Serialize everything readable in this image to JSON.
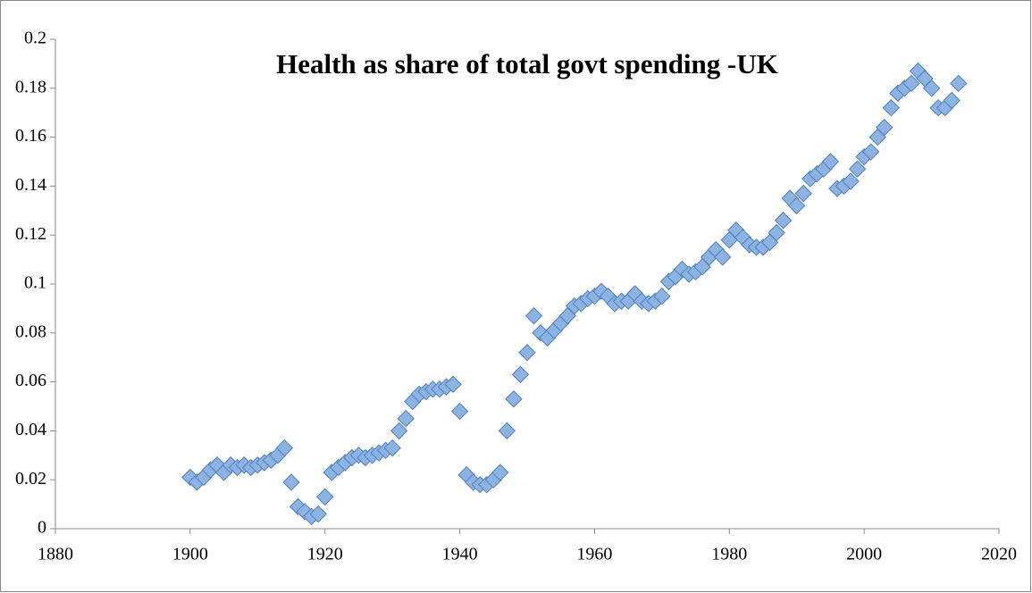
{
  "chart_data": {
    "type": "scatter",
    "title": "Health as share of total govt spending -UK",
    "x": [
      1900,
      1901,
      1902,
      1903,
      1904,
      1905,
      1906,
      1907,
      1908,
      1909,
      1910,
      1911,
      1912,
      1913,
      1914,
      1915,
      1916,
      1917,
      1918,
      1919,
      1920,
      1921,
      1922,
      1923,
      1924,
      1925,
      1926,
      1927,
      1928,
      1929,
      1930,
      1931,
      1932,
      1933,
      1934,
      1935,
      1936,
      1937,
      1938,
      1939,
      1940,
      1941,
      1942,
      1943,
      1944,
      1945,
      1946,
      1947,
      1948,
      1949,
      1950,
      1951,
      1952,
      1953,
      1954,
      1955,
      1956,
      1957,
      1958,
      1959,
      1960,
      1961,
      1962,
      1963,
      1964,
      1965,
      1966,
      1967,
      1968,
      1969,
      1970,
      1971,
      1972,
      1973,
      1974,
      1975,
      1976,
      1977,
      1978,
      1979,
      1980,
      1981,
      1982,
      1983,
      1984,
      1985,
      1986,
      1987,
      1988,
      1989,
      1990,
      1991,
      1992,
      1993,
      1994,
      1995,
      1996,
      1997,
      1998,
      1999,
      2000,
      2001,
      2002,
      2003,
      2004,
      2005,
      2006,
      2007,
      2008,
      2009,
      2010,
      2011,
      2012,
      2013,
      2014
    ],
    "values": [
      0.021,
      0.019,
      0.021,
      0.024,
      0.026,
      0.023,
      0.026,
      0.025,
      0.026,
      0.025,
      0.026,
      0.027,
      0.028,
      0.03,
      0.033,
      0.019,
      0.009,
      0.007,
      0.005,
      0.006,
      0.013,
      0.023,
      0.025,
      0.027,
      0.029,
      0.03,
      0.029,
      0.03,
      0.031,
      0.032,
      0.033,
      0.04,
      0.045,
      0.052,
      0.055,
      0.056,
      0.057,
      0.057,
      0.058,
      0.059,
      0.048,
      0.022,
      0.019,
      0.018,
      0.018,
      0.02,
      0.023,
      0.04,
      0.053,
      0.063,
      0.072,
      0.087,
      0.08,
      0.078,
      0.081,
      0.084,
      0.087,
      0.091,
      0.092,
      0.094,
      0.095,
      0.097,
      0.095,
      0.092,
      0.093,
      0.093,
      0.096,
      0.093,
      0.092,
      0.093,
      0.095,
      0.101,
      0.103,
      0.106,
      0.104,
      0.105,
      0.107,
      0.111,
      0.114,
      0.111,
      0.118,
      0.122,
      0.119,
      0.116,
      0.115,
      0.115,
      0.117,
      0.121,
      0.126,
      0.135,
      0.132,
      0.137,
      0.143,
      0.145,
      0.147,
      0.15,
      0.139,
      0.14,
      0.142,
      0.147,
      0.152,
      0.154,
      0.16,
      0.164,
      0.172,
      0.178,
      0.18,
      0.182,
      0.187,
      0.184,
      0.18,
      0.172,
      0.172,
      0.175,
      0.182
    ],
    "color": "#8db3e2",
    "xlim": [
      1880,
      2020
    ],
    "xticks": [
      1880,
      1900,
      1920,
      1940,
      1960,
      1980,
      2000,
      2020
    ],
    "ylim": [
      0,
      0.2
    ],
    "yticks": [
      0,
      0.02,
      0.04,
      0.06,
      0.08,
      0.1,
      0.12,
      0.14,
      0.16,
      0.18,
      0.2
    ]
  }
}
